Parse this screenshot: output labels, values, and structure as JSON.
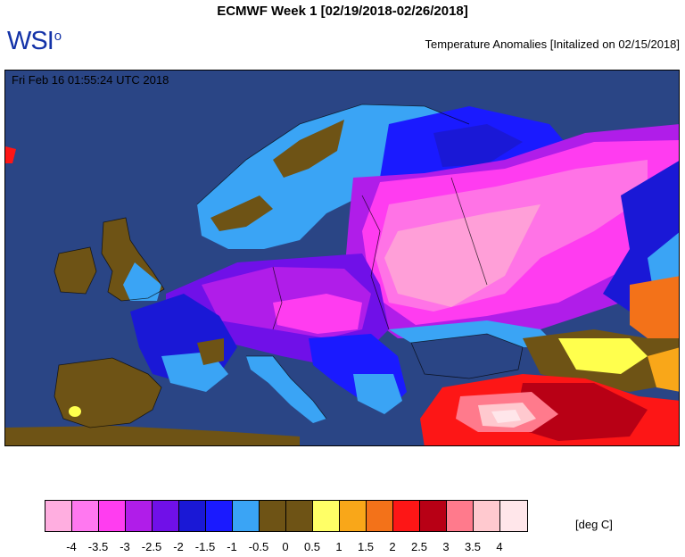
{
  "header": {
    "title": "ECMWF Week 1 [02/19/2018-02/26/2018]",
    "logo": "WSI",
    "logo_mark": "o",
    "subtitle": "Temperature Anomalies [Initalized on 02/15/2018]"
  },
  "map": {
    "timestamp": "Fri Feb 16 01:55:24 UTC 2018",
    "region": "Europe",
    "colors": {
      "sea": "#2a4585",
      "neg4": "#ff9fd8",
      "neg35": "#ff73e6",
      "neg3": "#ff3cf0",
      "neg25": "#b01de9",
      "neg2": "#7010e8",
      "neg15": "#1a18d6",
      "neg1": "#1a1aff",
      "neg05": "#3aa4f5",
      "zero": "#6e5315",
      "pos05": "#6e5315",
      "pos1": "#ffff4d",
      "pos15": "#f9a719",
      "pos2": "#f37219",
      "pos25": "#fd1616",
      "pos3": "#b80015",
      "pos35": "#ff7a8c",
      "pos4": "#ffc9cf",
      "pos45": "#ffe6ea"
    }
  },
  "legend": {
    "unit": "[deg C]",
    "swatches": [
      "#ffaee0",
      "#ff78f0",
      "#ff3df0",
      "#b01de9",
      "#7010e8",
      "#1a18d6",
      "#1a1aff",
      "#3aa4f5",
      "#6e5315",
      "#6e5315",
      "#ffff66",
      "#f9a719",
      "#f37219",
      "#fd1616",
      "#b80015",
      "#ff7a8c",
      "#ffc9cf",
      "#ffe6ea"
    ],
    "ticks": [
      "-4",
      "-3.5",
      "-3",
      "-2.5",
      "-2",
      "-1.5",
      "-1",
      "-0.5",
      "0",
      "0.5",
      "1",
      "1.5",
      "2",
      "2.5",
      "3",
      "3.5",
      "4"
    ]
  }
}
